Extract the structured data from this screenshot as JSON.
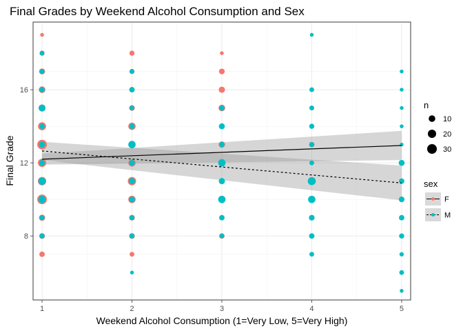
{
  "chart_data": {
    "type": "scatter",
    "title": "Final Grades by Weekend Alcohol Consumption and Sex",
    "xlabel": "Weekend Alcohol Consumption (1=Very Low, 5=Very High)",
    "ylabel": "Final Grade",
    "xlim": [
      0.9,
      5.1
    ],
    "ylim": [
      4.5,
      19.7
    ],
    "xticks": [
      1,
      2,
      3,
      4,
      5
    ],
    "yticks": [
      8,
      12,
      16
    ],
    "grid": true,
    "legend_position": "right",
    "size_legend": {
      "title": "n",
      "entries": [
        {
          "label": "10",
          "n": 10
        },
        {
          "label": "20",
          "n": 20
        },
        {
          "label": "30",
          "n": 30
        }
      ]
    },
    "color_legend": {
      "title": "sex",
      "entries": [
        {
          "label": "F",
          "color": "#F8766D",
          "linetype": "solid"
        },
        {
          "label": "M",
          "color": "#00BFC4",
          "linetype": "dashed"
        }
      ]
    },
    "series": [
      {
        "name": "F",
        "color": "#F8766D",
        "points": [
          {
            "x": 1,
            "y": 19,
            "n": 1
          },
          {
            "x": 1,
            "y": 18,
            "n": 4
          },
          {
            "x": 1,
            "y": 17,
            "n": 7
          },
          {
            "x": 1,
            "y": 16,
            "n": 10
          },
          {
            "x": 1,
            "y": 15,
            "n": 12
          },
          {
            "x": 1,
            "y": 14,
            "n": 18
          },
          {
            "x": 1,
            "y": 13,
            "n": 30
          },
          {
            "x": 1,
            "y": 12,
            "n": 20
          },
          {
            "x": 1,
            "y": 11,
            "n": 20
          },
          {
            "x": 1,
            "y": 10,
            "n": 30
          },
          {
            "x": 1,
            "y": 9,
            "n": 8
          },
          {
            "x": 1,
            "y": 8,
            "n": 6
          },
          {
            "x": 1,
            "y": 7,
            "n": 5
          },
          {
            "x": 2,
            "y": 18,
            "n": 4
          },
          {
            "x": 2,
            "y": 17,
            "n": 4
          },
          {
            "x": 2,
            "y": 16,
            "n": 5
          },
          {
            "x": 2,
            "y": 15,
            "n": 6
          },
          {
            "x": 2,
            "y": 14,
            "n": 14
          },
          {
            "x": 2,
            "y": 12,
            "n": 14
          },
          {
            "x": 2,
            "y": 11,
            "n": 20
          },
          {
            "x": 2,
            "y": 10,
            "n": 14
          },
          {
            "x": 2,
            "y": 9,
            "n": 6
          },
          {
            "x": 2,
            "y": 8,
            "n": 6
          },
          {
            "x": 2,
            "y": 7,
            "n": 3
          },
          {
            "x": 3,
            "y": 18,
            "n": 1
          },
          {
            "x": 3,
            "y": 17,
            "n": 6
          },
          {
            "x": 3,
            "y": 16,
            "n": 8
          },
          {
            "x": 3,
            "y": 15,
            "n": 10
          },
          {
            "x": 3,
            "y": 13,
            "n": 9
          },
          {
            "x": 3,
            "y": 12,
            "n": 12
          },
          {
            "x": 3,
            "y": 9,
            "n": 4
          },
          {
            "x": 3,
            "y": 8,
            "n": 5
          },
          {
            "x": 4,
            "y": 15,
            "n": 3
          },
          {
            "x": 4,
            "y": 13,
            "n": 5
          },
          {
            "x": 5,
            "y": 11,
            "n": 4
          }
        ]
      },
      {
        "name": "M",
        "color": "#00BFC4",
        "points": [
          {
            "x": 1,
            "y": 18,
            "n": 3
          },
          {
            "x": 1,
            "y": 17,
            "n": 4
          },
          {
            "x": 1,
            "y": 16,
            "n": 5
          },
          {
            "x": 1,
            "y": 15,
            "n": 11
          },
          {
            "x": 1,
            "y": 14,
            "n": 5
          },
          {
            "x": 1,
            "y": 13,
            "n": 8
          },
          {
            "x": 1,
            "y": 12,
            "n": 6
          },
          {
            "x": 1,
            "y": 11,
            "n": 14
          },
          {
            "x": 1,
            "y": 10,
            "n": 14
          },
          {
            "x": 1,
            "y": 9,
            "n": 4
          },
          {
            "x": 1,
            "y": 8,
            "n": 4
          },
          {
            "x": 2,
            "y": 17,
            "n": 3
          },
          {
            "x": 2,
            "y": 16,
            "n": 5
          },
          {
            "x": 2,
            "y": 15,
            "n": 3
          },
          {
            "x": 2,
            "y": 14,
            "n": 5
          },
          {
            "x": 2,
            "y": 13,
            "n": 14
          },
          {
            "x": 2,
            "y": 12,
            "n": 7
          },
          {
            "x": 2,
            "y": 11,
            "n": 8
          },
          {
            "x": 2,
            "y": 10,
            "n": 7
          },
          {
            "x": 2,
            "y": 9,
            "n": 4
          },
          {
            "x": 2,
            "y": 8,
            "n": 4
          },
          {
            "x": 2,
            "y": 6,
            "n": 1
          },
          {
            "x": 3,
            "y": 15,
            "n": 5
          },
          {
            "x": 3,
            "y": 14,
            "n": 7
          },
          {
            "x": 3,
            "y": 13,
            "n": 5
          },
          {
            "x": 3,
            "y": 12,
            "n": 14
          },
          {
            "x": 3,
            "y": 11,
            "n": 8
          },
          {
            "x": 3,
            "y": 10,
            "n": 14
          },
          {
            "x": 3,
            "y": 9,
            "n": 5
          },
          {
            "x": 3,
            "y": 8,
            "n": 3
          },
          {
            "x": 4,
            "y": 19,
            "n": 1
          },
          {
            "x": 4,
            "y": 16,
            "n": 3
          },
          {
            "x": 4,
            "y": 15,
            "n": 3
          },
          {
            "x": 4,
            "y": 14,
            "n": 4
          },
          {
            "x": 4,
            "y": 13,
            "n": 4
          },
          {
            "x": 4,
            "y": 12,
            "n": 3
          },
          {
            "x": 4,
            "y": 11,
            "n": 18
          },
          {
            "x": 4,
            "y": 10,
            "n": 14
          },
          {
            "x": 4,
            "y": 9,
            "n": 6
          },
          {
            "x": 4,
            "y": 8,
            "n": 5
          },
          {
            "x": 4,
            "y": 7,
            "n": 3
          },
          {
            "x": 5,
            "y": 17,
            "n": 1
          },
          {
            "x": 5,
            "y": 16,
            "n": 1
          },
          {
            "x": 5,
            "y": 15,
            "n": 1
          },
          {
            "x": 5,
            "y": 14,
            "n": 1
          },
          {
            "x": 5,
            "y": 13,
            "n": 1
          },
          {
            "x": 5,
            "y": 12,
            "n": 7
          },
          {
            "x": 5,
            "y": 11,
            "n": 5
          },
          {
            "x": 5,
            "y": 10,
            "n": 6
          },
          {
            "x": 5,
            "y": 9,
            "n": 5
          },
          {
            "x": 5,
            "y": 8,
            "n": 4
          },
          {
            "x": 5,
            "y": 7,
            "n": 2
          },
          {
            "x": 5,
            "y": 6,
            "n": 3
          },
          {
            "x": 5,
            "y": 5,
            "n": 1
          }
        ]
      }
    ],
    "fit_lines": [
      {
        "series": "F",
        "linetype": "solid",
        "x": [
          1,
          5
        ],
        "y": [
          12.2,
          12.95
        ],
        "ci_lower": [
          11.9,
          12.15
        ],
        "ci_upper": [
          12.5,
          13.75
        ]
      },
      {
        "series": "M",
        "linetype": "dashed",
        "x": [
          1,
          5
        ],
        "y": [
          12.65,
          10.9
        ],
        "ci_lower": [
          12.15,
          9.95
        ],
        "ci_upper": [
          13.15,
          11.85
        ]
      }
    ]
  }
}
